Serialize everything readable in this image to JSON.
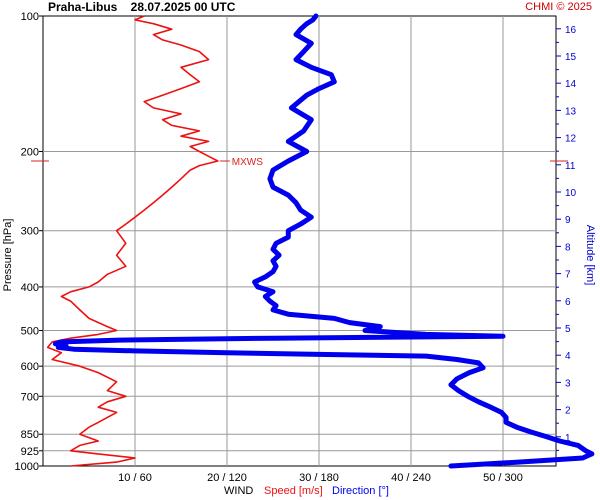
{
  "header": {
    "title": "Praha-Libus    28.07.2025 00 UTC",
    "copyright": "CHMI © 2025"
  },
  "chart_data": {
    "type": "line",
    "title": "Praha-Libus    28.07.2025 00 UTC",
    "ylabel_left": "Pressure [hPa]",
    "ylabel_right": "Altitude [km]",
    "xlabel_prefix": "WIND",
    "xlabel_speed": "Speed [m/s]",
    "xlabel_direction": "Direction [°]",
    "x_speed_range": [
      0,
      60
    ],
    "x_direction_range": [
      0,
      360
    ],
    "pressure_ticks": [
      100,
      200,
      300,
      400,
      500,
      600,
      700,
      850,
      925,
      1000
    ],
    "altitude_ticks": [
      1,
      2,
      3,
      4,
      5,
      6,
      7,
      8,
      9,
      10,
      11,
      12,
      13,
      14,
      15,
      16
    ],
    "x_tick_labels": [
      "10 / 60",
      "20 / 120",
      "30 / 180",
      "40 / 240",
      "50 / 300"
    ],
    "max_wind_label": "MXWS",
    "max_wind_pressure": 210,
    "grid": true,
    "colors": {
      "speed": "#ee1111",
      "direction": "#0000ee",
      "grid": "#9a9a9a",
      "mxws": "#dd2222",
      "altitude_axis": "#0000cc"
    },
    "series": [
      {
        "name": "Speed [m/s]",
        "points_pressure_value": [
          [
            1000,
            3
          ],
          [
            980,
            8
          ],
          [
            960,
            10
          ],
          [
            940,
            6
          ],
          [
            925,
            3
          ],
          [
            900,
            4
          ],
          [
            880,
            6
          ],
          [
            850,
            4
          ],
          [
            820,
            5
          ],
          [
            800,
            6
          ],
          [
            780,
            7
          ],
          [
            760,
            8
          ],
          [
            740,
            6
          ],
          [
            720,
            7
          ],
          [
            700,
            9
          ],
          [
            680,
            7
          ],
          [
            650,
            8
          ],
          [
            620,
            6
          ],
          [
            600,
            4
          ],
          [
            580,
            1
          ],
          [
            560,
            2
          ],
          [
            545,
            0.5
          ],
          [
            530,
            1
          ],
          [
            520,
            3
          ],
          [
            510,
            6
          ],
          [
            500,
            8
          ],
          [
            490,
            7
          ],
          [
            470,
            5
          ],
          [
            450,
            4
          ],
          [
            430,
            3
          ],
          [
            420,
            2
          ],
          [
            410,
            3
          ],
          [
            400,
            5
          ],
          [
            390,
            6
          ],
          [
            375,
            7
          ],
          [
            360,
            9
          ],
          [
            340,
            8
          ],
          [
            320,
            9
          ],
          [
            300,
            8
          ],
          [
            290,
            9
          ],
          [
            280,
            10
          ],
          [
            270,
            11
          ],
          [
            260,
            12
          ],
          [
            250,
            13
          ],
          [
            240,
            14
          ],
          [
            230,
            15
          ],
          [
            220,
            16
          ],
          [
            215,
            17
          ],
          [
            210,
            19
          ],
          [
            205,
            18
          ],
          [
            200,
            17
          ],
          [
            195,
            16
          ],
          [
            190,
            18
          ],
          [
            185,
            15
          ],
          [
            180,
            17
          ],
          [
            175,
            14
          ],
          [
            170,
            13
          ],
          [
            165,
            15
          ],
          [
            160,
            12
          ],
          [
            155,
            11
          ],
          [
            150,
            13
          ],
          [
            145,
            15
          ],
          [
            140,
            17
          ],
          [
            135,
            16
          ],
          [
            130,
            15
          ],
          [
            125,
            18
          ],
          [
            120,
            17
          ],
          [
            116,
            15
          ],
          [
            113,
            13
          ],
          [
            110,
            12
          ],
          [
            107,
            14
          ],
          [
            104,
            12
          ],
          [
            102,
            10
          ],
          [
            100,
            11
          ]
        ]
      },
      {
        "name": "Direction [°]",
        "points_pressure_value": [
          [
            1000,
            266
          ],
          [
            980,
            310
          ],
          [
            960,
            352
          ],
          [
            940,
            358
          ],
          [
            925,
            354
          ],
          [
            900,
            349
          ],
          [
            880,
            337
          ],
          [
            860,
            328
          ],
          [
            840,
            318
          ],
          [
            820,
            309
          ],
          [
            800,
            302
          ],
          [
            780,
            302
          ],
          [
            760,
            299
          ],
          [
            740,
            292
          ],
          [
            720,
            284
          ],
          [
            700,
            277
          ],
          [
            680,
            271
          ],
          [
            660,
            266
          ],
          [
            640,
            270
          ],
          [
            620,
            278
          ],
          [
            605,
            287
          ],
          [
            590,
            284
          ],
          [
            580,
            270
          ],
          [
            570,
            250
          ],
          [
            565,
            180
          ],
          [
            560,
            120
          ],
          [
            555,
            60
          ],
          [
            550,
            20
          ],
          [
            545,
            10
          ],
          [
            540,
            15
          ],
          [
            535,
            8
          ],
          [
            530,
            12
          ],
          [
            525,
            50
          ],
          [
            520,
            150
          ],
          [
            515,
            300
          ],
          [
            510,
            250
          ],
          [
            505,
            230
          ],
          [
            500,
            210
          ],
          [
            490,
            220
          ],
          [
            480,
            200
          ],
          [
            470,
            190
          ],
          [
            460,
            160
          ],
          [
            450,
            150
          ],
          [
            440,
            152
          ],
          [
            430,
            148
          ],
          [
            420,
            145
          ],
          [
            410,
            150
          ],
          [
            400,
            140
          ],
          [
            390,
            138
          ],
          [
            380,
            145
          ],
          [
            370,
            150
          ],
          [
            360,
            152
          ],
          [
            350,
            150
          ],
          [
            340,
            154
          ],
          [
            330,
            150
          ],
          [
            320,
            152
          ],
          [
            310,
            160
          ],
          [
            300,
            160
          ],
          [
            290,
            168
          ],
          [
            280,
            175
          ],
          [
            270,
            168
          ],
          [
            260,
            165
          ],
          [
            250,
            160
          ],
          [
            240,
            150
          ],
          [
            230,
            148
          ],
          [
            220,
            150
          ],
          [
            210,
            160
          ],
          [
            200,
            172
          ],
          [
            190,
            160
          ],
          [
            180,
            170
          ],
          [
            170,
            175
          ],
          [
            160,
            162
          ],
          [
            150,
            172
          ],
          [
            145,
            180
          ],
          [
            140,
            190
          ],
          [
            135,
            188
          ],
          [
            130,
            175
          ],
          [
            125,
            165
          ],
          [
            120,
            170
          ],
          [
            115,
            175
          ],
          [
            110,
            165
          ],
          [
            107,
            168
          ],
          [
            104,
            172
          ],
          [
            102,
            176
          ],
          [
            100,
            178
          ]
        ]
      }
    ]
  }
}
